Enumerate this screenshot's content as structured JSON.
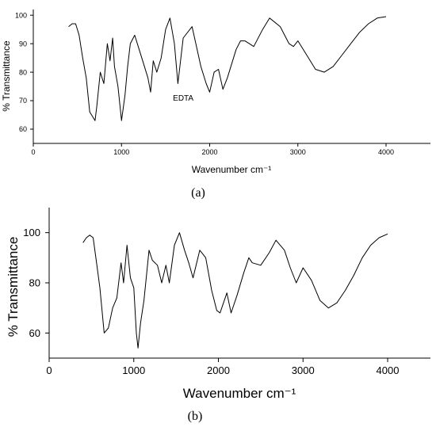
{
  "chart_data": [
    {
      "type": "line",
      "panel_label": "(a)",
      "xlabel": "Wavenumber cm⁻¹",
      "ylabel": "% Transmittance",
      "xlim": [
        0,
        4500
      ],
      "ylim": [
        55,
        102
      ],
      "x_ticks": [
        0,
        1000,
        2000,
        3000,
        4000
      ],
      "y_ticks": [
        60,
        70,
        80,
        90,
        100
      ],
      "grid": false,
      "annotations": [
        {
          "text": "EDTA",
          "x": 1700,
          "y": 70
        }
      ],
      "series": [
        {
          "x": [
            400,
            440,
            480,
            520,
            560,
            600,
            640,
            680,
            700,
            720,
            760,
            800,
            840,
            870,
            900,
            920,
            960,
            1000,
            1040,
            1070,
            1100,
            1150,
            1200,
            1250,
            1300,
            1330,
            1360,
            1400,
            1450,
            1500,
            1550,
            1600,
            1640,
            1700,
            1800,
            1900,
            1960,
            2000,
            2050,
            2100,
            2150,
            2200,
            2300,
            2350,
            2400,
            2500,
            2600,
            2680,
            2800,
            2900,
            2950,
            3000,
            3100,
            3200,
            3300,
            3400,
            3500,
            3600,
            3700,
            3800,
            3900,
            4000
          ],
          "y": [
            96,
            97,
            97,
            93,
            85,
            78,
            66,
            64,
            63,
            68,
            80,
            76,
            90,
            84,
            92,
            82,
            75,
            63,
            72,
            82,
            90,
            93,
            88,
            83,
            78,
            73,
            84,
            80,
            85,
            95,
            99,
            90,
            76,
            92,
            96,
            82,
            76,
            73,
            80,
            81,
            74,
            78,
            88,
            91,
            91,
            89,
            95,
            99,
            96,
            90,
            89,
            91,
            86,
            81,
            80,
            82,
            86,
            90,
            94,
            97,
            99,
            99.5
          ]
        }
      ]
    },
    {
      "type": "line",
      "panel_label": "(b)",
      "xlabel": "Wavenumber cm⁻¹",
      "ylabel": "% Transmittance",
      "xlim": [
        0,
        4500
      ],
      "ylim": [
        50,
        110
      ],
      "x_ticks": [
        0,
        1000,
        2000,
        3000,
        4000
      ],
      "y_ticks": [
        60,
        80,
        100
      ],
      "grid": false,
      "series": [
        {
          "x": [
            400,
            440,
            480,
            520,
            560,
            600,
            650,
            700,
            750,
            800,
            850,
            880,
            920,
            960,
            1000,
            1030,
            1050,
            1080,
            1120,
            1180,
            1220,
            1280,
            1330,
            1380,
            1420,
            1480,
            1540,
            1600,
            1650,
            1700,
            1780,
            1850,
            1920,
            1980,
            2020,
            2060,
            2100,
            2150,
            2220,
            2300,
            2360,
            2400,
            2500,
            2600,
            2680,
            2780,
            2850,
            2920,
            3000,
            3100,
            3200,
            3300,
            3400,
            3500,
            3600,
            3700,
            3800,
            3900,
            4000
          ],
          "y": [
            96,
            98,
            99,
            98,
            88,
            78,
            60,
            62,
            70,
            74,
            88,
            80,
            95,
            82,
            78,
            60,
            54,
            64,
            73,
            93,
            89,
            87,
            80,
            87,
            80,
            95,
            100,
            93,
            88,
            82,
            93,
            90,
            77,
            69,
            68,
            72,
            76,
            68,
            75,
            84,
            90,
            88,
            87,
            92,
            97,
            93,
            86,
            80,
            86,
            81,
            73,
            70,
            72,
            77,
            83,
            90,
            95,
            98,
            99.5
          ]
        }
      ]
    }
  ]
}
